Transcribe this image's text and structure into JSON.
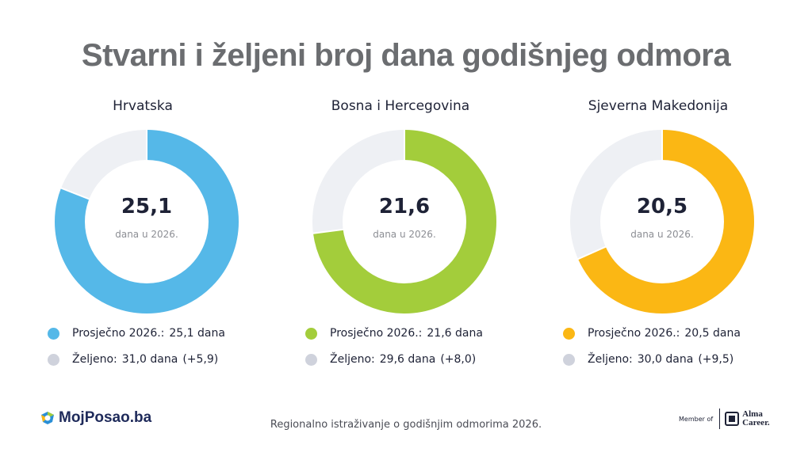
{
  "title": "Stvarni i željeni broj dana godišnjeg odmora",
  "panels": [
    {
      "country": "Hrvatska",
      "value_text": "25,1",
      "value_sub": "dana u 2026.",
      "color": "#55b8e8",
      "legend_actual_label": "Prosječno 2026.:",
      "legend_actual_value": "25,1 dana",
      "legend_desired_label": "Željeno:",
      "legend_desired_value": "31,0 dana",
      "legend_desired_diff": "(+5,9)"
    },
    {
      "country": "Bosna i Hercegovina",
      "value_text": "21,6",
      "value_sub": "dana u 2026.",
      "color": "#a3cd3b",
      "legend_actual_label": "Prosječno 2026.:",
      "legend_actual_value": "21,6 dana",
      "legend_desired_label": "Željeno:",
      "legend_desired_value": "29,6 dana",
      "legend_desired_diff": "(+8,0)"
    },
    {
      "country": "Sjeverna Makedonija",
      "value_text": "20,5",
      "value_sub": "dana u 2026.",
      "color": "#fbb714",
      "legend_actual_label": "Prosječno 2026.:",
      "legend_actual_value": "20,5 dana",
      "legend_desired_label": "Željeno:",
      "legend_desired_value": "30,0 dana",
      "legend_desired_diff": "(+9,5)"
    }
  ],
  "remainder_color": "#eef0f4",
  "legend_desired_dot_color": "#cfd2dc",
  "footer": {
    "caption": "Regionalno istraživanje o godišnjim odmorima 2026.",
    "logo": "MojPosao.ba",
    "member_of": "Member of",
    "alma_career": "Alma\nCareer."
  },
  "chart_data": [
    {
      "type": "pie",
      "title": "Hrvatska",
      "labels": [
        "Prosječno 2026.",
        "Željeno"
      ],
      "actual": 25.1,
      "desired": 31.0,
      "diff": 5.9,
      "unit": "dana"
    },
    {
      "type": "pie",
      "title": "Bosna i Hercegovina",
      "labels": [
        "Prosječno 2026.",
        "Željeno"
      ],
      "actual": 21.6,
      "desired": 29.6,
      "diff": 8.0,
      "unit": "dana"
    },
    {
      "type": "pie",
      "title": "Sjeverna Makedonija",
      "labels": [
        "Prosječno 2026.",
        "Željeno"
      ],
      "actual": 20.5,
      "desired": 30.0,
      "diff": 9.5,
      "unit": "dana"
    }
  ]
}
